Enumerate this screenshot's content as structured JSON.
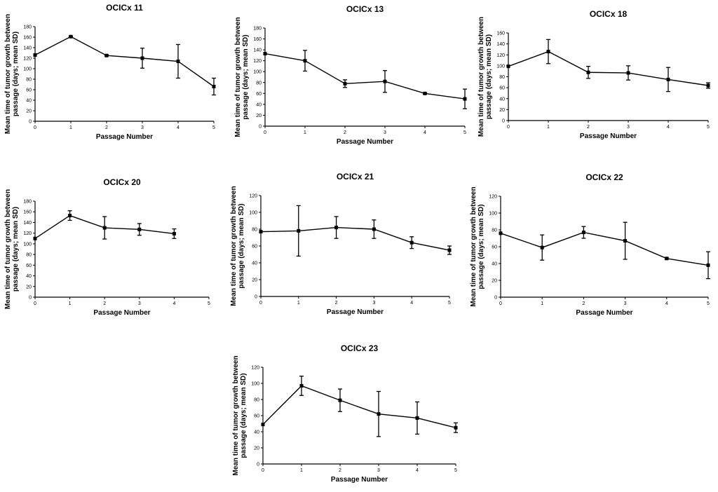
{
  "chart_data": [
    {
      "type": "line",
      "title": "OCICx 11",
      "xlabel": "Passage Number",
      "ylabel": [
        "Mean time of tumor growth between",
        "passage (days; mean SD)"
      ],
      "xlim": [
        0,
        5
      ],
      "ylim": [
        0,
        180
      ],
      "ystep": 20,
      "x": [
        0,
        1,
        2,
        3,
        4,
        5
      ],
      "series": [
        {
          "name": "OCICx 11",
          "values": [
            126,
            161,
            125,
            120,
            114,
            66
          ],
          "error": [
            0,
            1,
            1,
            19,
            32,
            16
          ]
        }
      ]
    },
    {
      "type": "line",
      "title": "OCICx 13",
      "xlabel": "Passage Number",
      "ylabel": [
        "Mean time of tumor growth between",
        "passage (days; mean SD)"
      ],
      "xlim": [
        0,
        5
      ],
      "ylim": [
        0,
        180
      ],
      "ystep": 20,
      "x": [
        0,
        1,
        2,
        3,
        4,
        5
      ],
      "series": [
        {
          "name": "OCICx 13",
          "values": [
            133,
            120,
            78,
            82,
            60,
            50
          ],
          "error": [
            0,
            19,
            7,
            20,
            1,
            18
          ]
        }
      ]
    },
    {
      "type": "line",
      "title": "OCICx 18",
      "xlabel": "Passage Number",
      "ylabel": [
        "Mean time of tumor growth between",
        "passage (days; mean SD)"
      ],
      "xlim": [
        0,
        5
      ],
      "ylim": [
        0,
        160
      ],
      "ystep": 20,
      "x": [
        0,
        1,
        2,
        3,
        4,
        5
      ],
      "series": [
        {
          "name": "OCICx 18",
          "values": [
            99,
            126,
            88,
            87,
            75,
            64
          ],
          "error": [
            0,
            22,
            11,
            13,
            22,
            5
          ]
        }
      ]
    },
    {
      "type": "line",
      "title": "OCICx 20",
      "xlabel": "Passage Number",
      "ylabel": [
        "Mean time of tumor growth between",
        "passage (days; mean SD)"
      ],
      "xlim": [
        0,
        5
      ],
      "ylim": [
        0,
        180
      ],
      "ystep": 20,
      "x": [
        0,
        1,
        2,
        3,
        4
      ],
      "series": [
        {
          "name": "OCICx 20",
          "values": [
            110,
            153,
            130,
            127,
            119
          ],
          "error": [
            0,
            9,
            21,
            11,
            9
          ]
        }
      ]
    },
    {
      "type": "line",
      "title": "OCICx 21",
      "xlabel": "Passage Number",
      "ylabel": [
        "Mean time of tumor growth between",
        "passage (days; mean SD)"
      ],
      "xlim": [
        0,
        5
      ],
      "ylim": [
        0,
        120
      ],
      "ystep": 20,
      "x": [
        0,
        1,
        2,
        3,
        4,
        5
      ],
      "series": [
        {
          "name": "OCICx 21",
          "values": [
            77,
            78,
            82,
            80,
            64,
            55
          ],
          "error": [
            0,
            30,
            13,
            11,
            7,
            5
          ]
        }
      ]
    },
    {
      "type": "line",
      "title": "OCICx 22",
      "xlabel": "Passage Number",
      "ylabel": [
        "Mean time of tumor growth between",
        "passage (days; mean SD)"
      ],
      "xlim": [
        0,
        5
      ],
      "ylim": [
        0,
        120
      ],
      "ystep": 20,
      "x": [
        0,
        1,
        2,
        3,
        4,
        5
      ],
      "series": [
        {
          "name": "OCICx 22",
          "values": [
            76,
            59,
            77,
            67,
            46,
            38
          ],
          "error": [
            0,
            15,
            7,
            22,
            1,
            16
          ]
        }
      ]
    },
    {
      "type": "line",
      "title": "OCICx 23",
      "xlabel": "Passage Number",
      "ylabel": [
        "Mean time of tumor growth between",
        "passage (days; mean SD)"
      ],
      "xlim": [
        0,
        5
      ],
      "ylim": [
        0,
        120
      ],
      "ystep": 20,
      "x": [
        0,
        1,
        2,
        3,
        4,
        5
      ],
      "series": [
        {
          "name": "OCICx 23",
          "values": [
            49,
            97,
            79,
            62,
            57,
            45
          ],
          "error": [
            0,
            12,
            14,
            28,
            20,
            6
          ]
        }
      ]
    }
  ]
}
